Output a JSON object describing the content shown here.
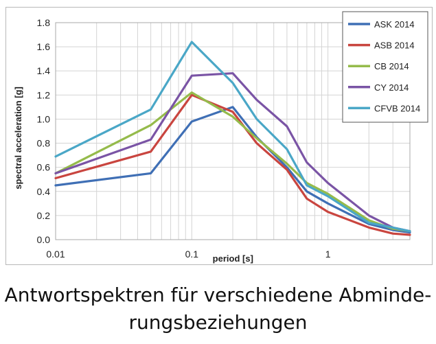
{
  "chart_data": {
    "type": "line",
    "title": "",
    "xlabel": "period [s]",
    "ylabel": "spectral acceleration [g]",
    "xscale": "log",
    "xlim": [
      0.01,
      4
    ],
    "ylim": [
      0,
      1.8
    ],
    "x_ticks": [
      "0.01",
      "0.1",
      "1"
    ],
    "y_ticks": [
      "0.0",
      "0.2",
      "0.4",
      "0.6",
      "0.8",
      "1.0",
      "1.2",
      "1.4",
      "1.6",
      "1.8"
    ],
    "grid": true,
    "legend_position": "top-right",
    "x": [
      0.01,
      0.05,
      0.1,
      0.2,
      0.3,
      0.5,
      0.7,
      1,
      2,
      3,
      4
    ],
    "series": [
      {
        "name": "ASK 2014",
        "color": "#3f6fb5",
        "values": [
          0.45,
          0.55,
          0.98,
          1.1,
          0.85,
          0.6,
          0.4,
          0.3,
          0.13,
          0.08,
          0.06
        ]
      },
      {
        "name": "ASB 2014",
        "color": "#c9453f",
        "values": [
          0.51,
          0.73,
          1.2,
          1.06,
          0.8,
          0.58,
          0.34,
          0.23,
          0.1,
          0.05,
          0.04
        ]
      },
      {
        "name": "CB 2014",
        "color": "#95bb4b",
        "values": [
          0.55,
          0.95,
          1.22,
          1.02,
          0.84,
          0.63,
          0.47,
          0.38,
          0.16,
          0.09,
          0.07
        ]
      },
      {
        "name": "CY 2014",
        "color": "#7a54a5",
        "values": [
          0.55,
          0.83,
          1.36,
          1.38,
          1.16,
          0.94,
          0.64,
          0.47,
          0.2,
          0.1,
          0.07
        ]
      },
      {
        "name": "CFVB 2014",
        "color": "#4aa7c7",
        "values": [
          0.69,
          1.08,
          1.64,
          1.3,
          1.0,
          0.75,
          0.45,
          0.36,
          0.14,
          0.1,
          0.07
        ]
      }
    ]
  },
  "caption": {
    "line1": "Antwortspektren für verschiedene Abminde-",
    "line2": "rungsbeziehungen"
  }
}
